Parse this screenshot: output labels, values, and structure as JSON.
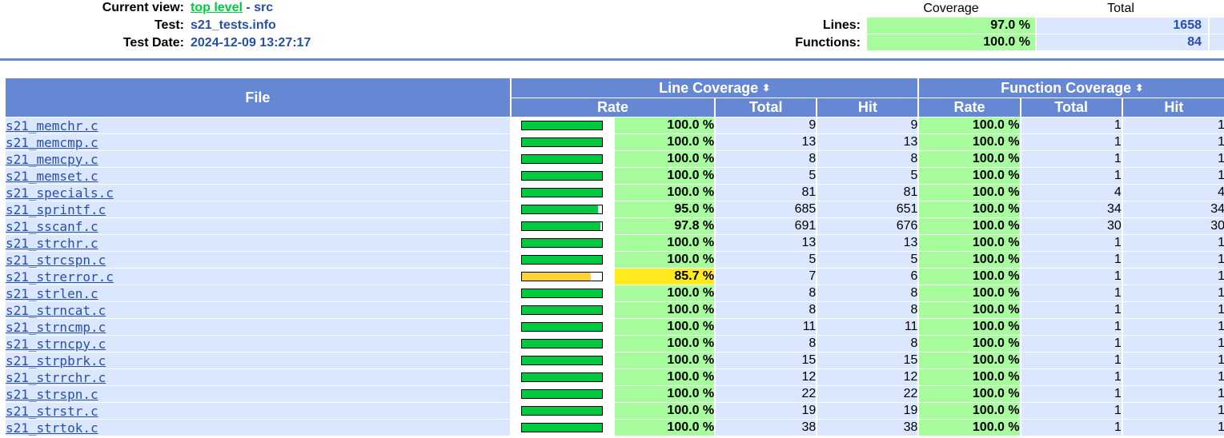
{
  "header": {
    "current_view_label": "Current view:",
    "current_view_link": "top level",
    "current_view_separator": " - ",
    "current_view_dir": "src",
    "test_label": "Test:",
    "test_value": "s21_tests.info",
    "date_label": "Test Date:",
    "date_value": "2024-12-09 13:27:17"
  },
  "summary": {
    "coverage_head": "Coverage",
    "total_head": "Total",
    "lines_label": "Lines:",
    "lines_coverage": "97.0 %",
    "lines_total": "1658",
    "functions_label": "Functions:",
    "functions_coverage": "100.0 %",
    "functions_total": "84"
  },
  "table": {
    "file_head": "File",
    "line_cov_head": "Line Coverage",
    "func_cov_head": "Function Coverage",
    "sort_icon": "⬍",
    "rate_head": "Rate",
    "total_head": "Total",
    "hit_head": "Hit",
    "rows": [
      {
        "file": "s21_memchr.c",
        "line_pct": 100.0,
        "line_rate": "100.0 %",
        "line_total": "9",
        "line_hit": "9",
        "func_rate": "100.0 %",
        "func_total": "1",
        "func_hit": "1"
      },
      {
        "file": "s21_memcmp.c",
        "line_pct": 100.0,
        "line_rate": "100.0 %",
        "line_total": "13",
        "line_hit": "13",
        "func_rate": "100.0 %",
        "func_total": "1",
        "func_hit": "1"
      },
      {
        "file": "s21_memcpy.c",
        "line_pct": 100.0,
        "line_rate": "100.0 %",
        "line_total": "8",
        "line_hit": "8",
        "func_rate": "100.0 %",
        "func_total": "1",
        "func_hit": "1"
      },
      {
        "file": "s21_memset.c",
        "line_pct": 100.0,
        "line_rate": "100.0 %",
        "line_total": "5",
        "line_hit": "5",
        "func_rate": "100.0 %",
        "func_total": "1",
        "func_hit": "1"
      },
      {
        "file": "s21_specials.c",
        "line_pct": 100.0,
        "line_rate": "100.0 %",
        "line_total": "81",
        "line_hit": "81",
        "func_rate": "100.0 %",
        "func_total": "4",
        "func_hit": "4"
      },
      {
        "file": "s21_sprintf.c",
        "line_pct": 95.0,
        "line_rate": "95.0 %",
        "line_total": "685",
        "line_hit": "651",
        "func_rate": "100.0 %",
        "func_total": "34",
        "func_hit": "34"
      },
      {
        "file": "s21_sscanf.c",
        "line_pct": 97.8,
        "line_rate": "97.8 %",
        "line_total": "691",
        "line_hit": "676",
        "func_rate": "100.0 %",
        "func_total": "30",
        "func_hit": "30"
      },
      {
        "file": "s21_strchr.c",
        "line_pct": 100.0,
        "line_rate": "100.0 %",
        "line_total": "13",
        "line_hit": "13",
        "func_rate": "100.0 %",
        "func_total": "1",
        "func_hit": "1"
      },
      {
        "file": "s21_strcspn.c",
        "line_pct": 100.0,
        "line_rate": "100.0 %",
        "line_total": "5",
        "line_hit": "5",
        "func_rate": "100.0 %",
        "func_total": "1",
        "func_hit": "1"
      },
      {
        "file": "s21_strerror.c",
        "line_pct": 85.7,
        "line_rate": "85.7 %",
        "line_total": "7",
        "line_hit": "6",
        "func_rate": "100.0 %",
        "func_total": "1",
        "func_hit": "1"
      },
      {
        "file": "s21_strlen.c",
        "line_pct": 100.0,
        "line_rate": "100.0 %",
        "line_total": "8",
        "line_hit": "8",
        "func_rate": "100.0 %",
        "func_total": "1",
        "func_hit": "1"
      },
      {
        "file": "s21_strncat.c",
        "line_pct": 100.0,
        "line_rate": "100.0 %",
        "line_total": "8",
        "line_hit": "8",
        "func_rate": "100.0 %",
        "func_total": "1",
        "func_hit": "1"
      },
      {
        "file": "s21_strncmp.c",
        "line_pct": 100.0,
        "line_rate": "100.0 %",
        "line_total": "11",
        "line_hit": "11",
        "func_rate": "100.0 %",
        "func_total": "1",
        "func_hit": "1"
      },
      {
        "file": "s21_strncpy.c",
        "line_pct": 100.0,
        "line_rate": "100.0 %",
        "line_total": "8",
        "line_hit": "8",
        "func_rate": "100.0 %",
        "func_total": "1",
        "func_hit": "1"
      },
      {
        "file": "s21_strpbrk.c",
        "line_pct": 100.0,
        "line_rate": "100.0 %",
        "line_total": "15",
        "line_hit": "15",
        "func_rate": "100.0 %",
        "func_total": "1",
        "func_hit": "1"
      },
      {
        "file": "s21_strrchr.c",
        "line_pct": 100.0,
        "line_rate": "100.0 %",
        "line_total": "12",
        "line_hit": "12",
        "func_rate": "100.0 %",
        "func_total": "1",
        "func_hit": "1"
      },
      {
        "file": "s21_strspn.c",
        "line_pct": 100.0,
        "line_rate": "100.0 %",
        "line_total": "22",
        "line_hit": "22",
        "func_rate": "100.0 %",
        "func_total": "1",
        "func_hit": "1"
      },
      {
        "file": "s21_strstr.c",
        "line_pct": 100.0,
        "line_rate": "100.0 %",
        "line_total": "19",
        "line_hit": "19",
        "func_rate": "100.0 %",
        "func_total": "1",
        "func_hit": "1"
      },
      {
        "file": "s21_strtok.c",
        "line_pct": 100.0,
        "line_rate": "100.0 %",
        "line_total": "38",
        "line_hit": "38",
        "func_rate": "100.0 %",
        "func_total": "1",
        "func_hit": "1"
      }
    ]
  },
  "colors": {
    "header_blue": "#6688d4",
    "row_blue": "#dae7fe",
    "rate_high": "#a7fc9d",
    "rate_medium": "#ffea20",
    "bar_high": "#00cb40",
    "bar_medium": "#ffd132",
    "link_blue": "#284fa8"
  }
}
